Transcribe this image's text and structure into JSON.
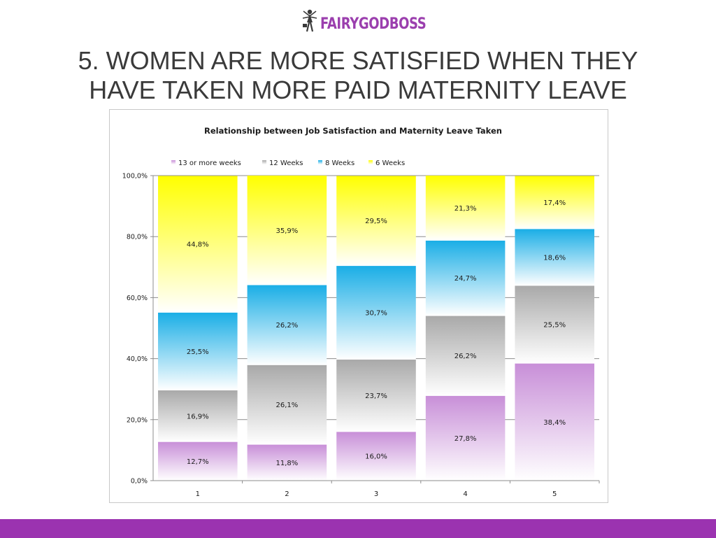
{
  "brand": {
    "name": "FAIRYGODBOSS",
    "color": "#9b3fae"
  },
  "slide": {
    "title_line1": "5. WOMEN ARE MORE SATISFIED WHEN THEY",
    "title_line2": "HAVE TAKEN MORE PAID MATERNITY LEAVE"
  },
  "colors": {
    "bottom_bar": "#9b33b0"
  },
  "chart_data": {
    "type": "bar",
    "stacked": true,
    "percent_stacked": true,
    "title": "Relationship between Job Satisfaction and Maternity Leave Taken",
    "categories": [
      "1",
      "2",
      "3",
      "4",
      "5"
    ],
    "ylim": [
      0,
      100
    ],
    "yticks": [
      "0,0%",
      "20,0%",
      "40,0%",
      "60,0%",
      "80,0%",
      "100,0%"
    ],
    "grid": true,
    "legend_position": "top-left",
    "series": [
      {
        "name": "13 or more weeks",
        "color": "#c88fd8",
        "values": [
          12.7,
          11.8,
          16.0,
          27.8,
          38.4
        ],
        "labels": [
          "12,7%",
          "11,8%",
          "16,0%",
          "27,8%",
          "38,4%"
        ]
      },
      {
        "name": "12  Weeks",
        "color": "#a9a9a9",
        "values": [
          16.9,
          26.1,
          23.7,
          26.2,
          25.5
        ],
        "labels": [
          "16,9%",
          "26,1%",
          "23,7%",
          "26,2%",
          "25,5%"
        ]
      },
      {
        "name": "8  Weeks",
        "color": "#1aaee6",
        "values": [
          25.5,
          26.2,
          30.7,
          24.7,
          18.6
        ],
        "labels": [
          "25,5%",
          "26,2%",
          "30,7%",
          "24,7%",
          "18,6%"
        ]
      },
      {
        "name": "6 Weeks",
        "color": "#ffff00",
        "values": [
          44.8,
          35.9,
          29.5,
          21.3,
          17.4
        ],
        "labels": [
          "44,8%",
          "35,9%",
          "29,5%",
          "21,3%",
          "17,4%"
        ]
      }
    ]
  }
}
